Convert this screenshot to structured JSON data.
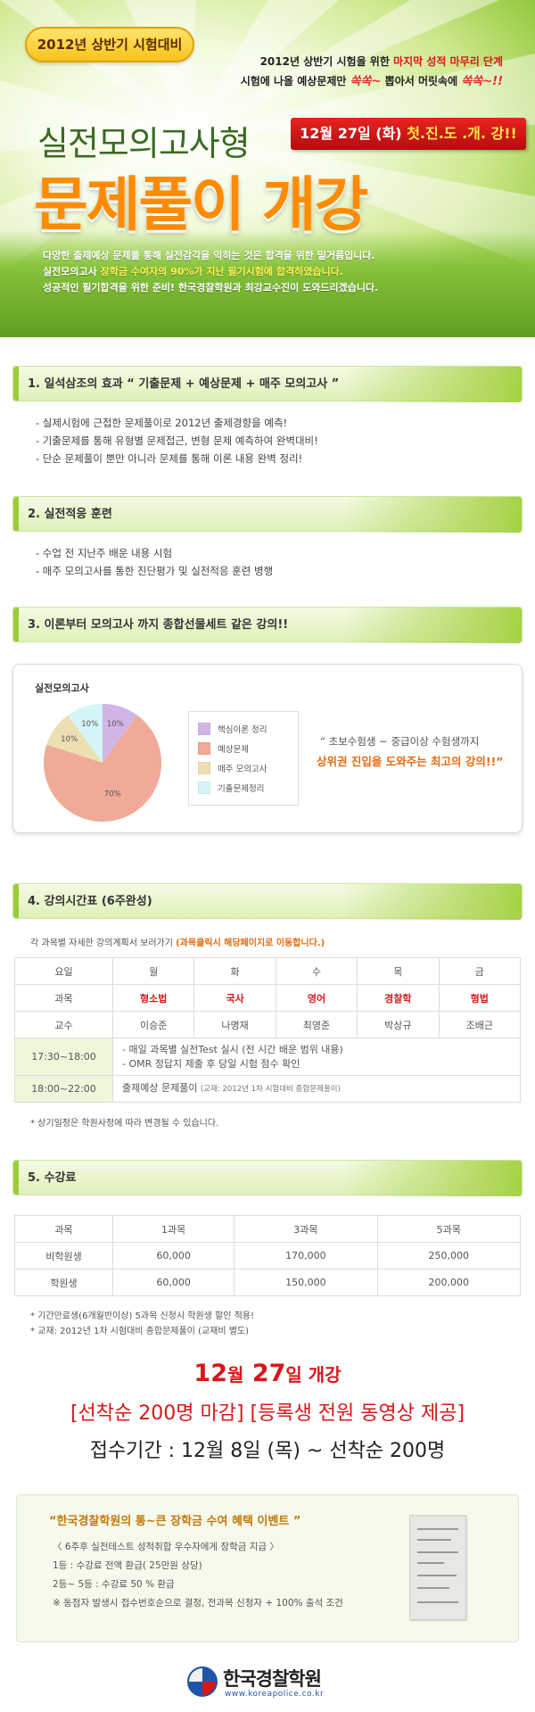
{
  "hero": {
    "badge": "2012년 상반기 시험대비",
    "right_line1_a": "2012년 상반기 시험을 위한",
    "right_line1_b": "마지막 성적 마무리 단계",
    "right_line2_a": "시험에 나올 예상문제만",
    "right_line2_b": "쏙쏙~",
    "right_line2_c": "뽑아서 머릿속에",
    "right_line2_d": "쏙쏙~!!",
    "subtitle": "실전모의고사형",
    "ribbon_a": "12월 27일 (화)",
    "ribbon_b": "첫.진.도 .개. 강!!",
    "title": "문제풀이 개강",
    "desc1": "다양한 출제예상 문제를 통해 실전감각을 익히는 것은 합격을 위한 밑거름입니다.",
    "desc2_a": "실전모의고사",
    "desc2_b": "장학금 수여자의 90%가 지난 필기시험에 합격하였습니다.",
    "desc3": "성공적인 필기합격을 위한 준비! 한국경찰학원과 최강교수진이 도와드리겠습니다."
  },
  "section1": {
    "title": "1. 일석삼조의 효과 “ 기출문제 + 예상문제 + 매주 모의고사 ”",
    "bullets": [
      "- 실제시험에 근접한 문제풀이로 2012년 출제경향을 예측!",
      "- 기출문제를 통해 유형별 문제접근, 변형 문제 예측하여 완벽대비!",
      "- 단순 문제풀이 뿐만 아니라 문제를 통해 이론 내용 완벽 정리!"
    ]
  },
  "section2": {
    "title": "2. 실전적응 훈련",
    "bullets": [
      "- 수업 전 지난주 배운 내용 시험",
      "- 매주 모의고사를 통한 진단평가 및 실전적응 훈련 병행"
    ]
  },
  "section3": {
    "title": "3. 이론부터 모의고사 까지 종합선물세트 같은 강의!!",
    "quote1": "“ 초보수험생 ~ 중급이상 수험생까지",
    "quote2": "상위권 진입을 도와주는 최고의 강의!!”"
  },
  "chart_data": {
    "type": "pie",
    "title": "실전모의고사",
    "labels": [
      "핵심이론 정리",
      "예상문제",
      "매주 모의고사",
      "기출문제정리"
    ],
    "values": [
      10,
      70,
      10,
      10
    ],
    "data_labels": [
      "10%",
      "70%",
      "10%",
      "10%"
    ],
    "colors": [
      "#d1b5e6",
      "#f0aa97",
      "#ece0b2",
      "#d5f5f9"
    ],
    "legend_position": "right"
  },
  "section4": {
    "title": "4. 강의시간표 (6주완성)",
    "note_a": "각 과목별 자세한 강의계획서 보러가기",
    "note_b": "(과목클릭시 해당페이지로 이동합니다.)",
    "days_label": "요일",
    "days": [
      "월",
      "화",
      "수",
      "목",
      "금"
    ],
    "subjects_label": "과목",
    "subjects": [
      "형소법",
      "국사",
      "영어",
      "경찰학",
      "형법"
    ],
    "profs_label": "교수",
    "profs": [
      "이승준",
      "나명재",
      "최영준",
      "박상규",
      "조배근"
    ],
    "slot1_time": "17:30~18:00",
    "slot1_line1": "- 매일 과목별 실전Test 실시 (전 시간 배운 범위 내용)",
    "slot1_line2": "- OMR 정답지 제출 후 당일 시험 점수 확인",
    "slot2_time": "18:00~22:00",
    "slot2_text": "출제예상 문제풀이",
    "slot2_small": "(교재: 2012년 1차 시험대비 종합문제풀이)",
    "footnote": "* 상기일정은 학원사정에 따라 변경될 수 있습니다."
  },
  "section5": {
    "title": "5. 수강료",
    "headers": [
      "과목",
      "1과목",
      "3과목",
      "5과목"
    ],
    "rows": [
      [
        "비학원생",
        "60,000",
        "170,000",
        "250,000"
      ],
      [
        "학원생",
        "60,000",
        "150,000",
        "200,000"
      ]
    ],
    "note1": "* 기간만료생(6개월반이상) 5과목 신청시 학원생 할인 적용!",
    "note2": "* 교재: 2012년 1차 시험대비 종합문제풀이 (교재비 별도)"
  },
  "cta": {
    "line1_a": "12",
    "line1_b": "월",
    "line1_c": "27",
    "line1_d": "일 개강",
    "line2": "[선착순 200명 마감] [등록생 전원 동영상 제공]",
    "line3": "접수기간 : 12월 8일 (목) ~ 선착순 200명"
  },
  "event": {
    "title": "“한국경찰학원의 통~큰 장학금 수여 혜택 이벤트 ”",
    "lines": [
      "〈 6주후 실전테스트 성적취합 우수자에게 장학금 지급 〉",
      "1등 : 수강료 전액 환급( 25만원 상당)",
      "2등~ 5등 : 수강료 50 % 환급",
      "※ 동점자 발생시 접수번호순으로 결정, 전과목 신청자 + 100% 출석 조건"
    ]
  },
  "footer": {
    "logo_text": "한국경찰학원",
    "url": "www.koreapolice.co.kr"
  }
}
